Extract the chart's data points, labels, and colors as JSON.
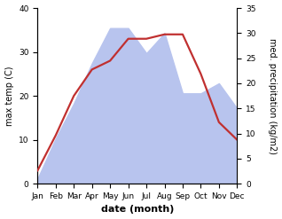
{
  "months": [
    "Jan",
    "Feb",
    "Mar",
    "Apr",
    "May",
    "Jun",
    "Jul",
    "Aug",
    "Sep",
    "Oct",
    "Nov",
    "Dec"
  ],
  "temperature": [
    3,
    11,
    20,
    26,
    28,
    33,
    33,
    34,
    34,
    25,
    14,
    10
  ],
  "precipitation": [
    1,
    9,
    16,
    24,
    31,
    31,
    26,
    30,
    18,
    18,
    20,
    15
  ],
  "temp_color": "#c03030",
  "precip_color": "#b8c4ee",
  "left_ylim": [
    0,
    40
  ],
  "right_ylim": [
    0,
    35
  ],
  "left_yticks": [
    0,
    10,
    20,
    30,
    40
  ],
  "right_yticks": [
    0,
    5,
    10,
    15,
    20,
    25,
    30,
    35
  ],
  "ylabel_left": "max temp (C)",
  "ylabel_right": "med. precipitation (kg/m2)",
  "xlabel": "date (month)",
  "label_fontsize": 7,
  "tick_fontsize": 6.5
}
